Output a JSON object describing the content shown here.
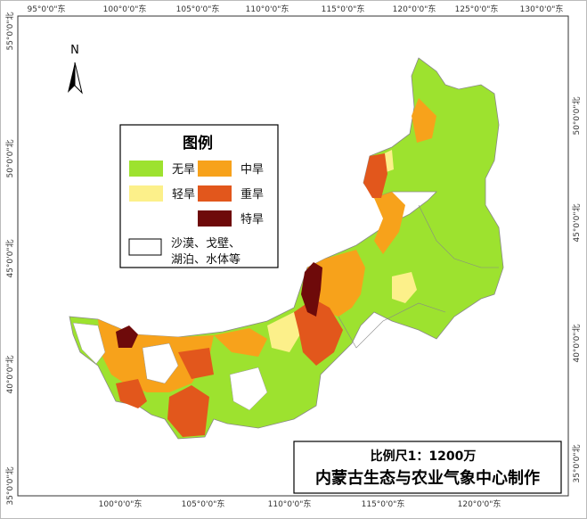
{
  "north_arrow": "N",
  "top_labels": [
    "95°0'0\"东",
    "100°0'0\"东",
    "105°0'0\"东",
    "110°0'0\"东",
    "115°0'0\"东",
    "120°0'0\"东",
    "125°0'0\"东",
    "130°0'0\"东"
  ],
  "bottom_labels": [
    "100°0'0\"东",
    "105°0'0\"东",
    "110°0'0\"东",
    "115°0'0\"东",
    "120°0'0\"东"
  ],
  "left_labels": [
    "55°0'0\"北",
    "50°0'0\"北",
    "45°0'0\"北",
    "40°0'0\"北",
    "35°0'0\"北"
  ],
  "right_labels": [
    "50°0'0\"北",
    "45°0'0\"北",
    "40°0'0\"北",
    "35°0'0\"北"
  ],
  "legend": {
    "title": "图例",
    "items": [
      {
        "label": "无旱",
        "color": "#9de22f"
      },
      {
        "label": "中旱",
        "color": "#f7a21b"
      },
      {
        "label": "轻旱",
        "color": "#fcf08a"
      },
      {
        "label": "重旱",
        "color": "#e2571c"
      },
      {
        "label": "特旱",
        "color": "#6e0a0a"
      }
    ],
    "other": [
      "沙漠、戈壁、",
      "湖泊、水体等"
    ]
  },
  "scale": "比例尺1：1200万",
  "producer": "内蒙古生态与农业气象中心制作"
}
